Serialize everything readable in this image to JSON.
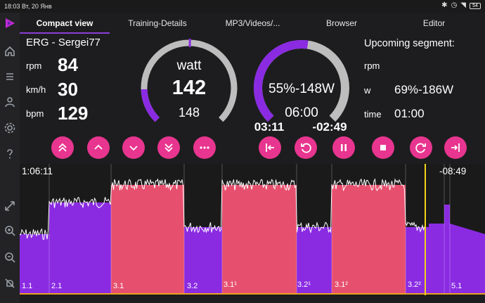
{
  "status_bar": {
    "time": "18:03",
    "date": "Вт, 20 Янв",
    "battery": "54"
  },
  "nav": {
    "icons": [
      "logo-icon",
      "home-icon",
      "list-icon",
      "person-icon",
      "gear-icon",
      "help-icon",
      "expand-icon",
      "zoom-in-icon",
      "zoom-out-icon",
      "bell-off-icon"
    ]
  },
  "tabs": [
    {
      "label": "Compact view",
      "active": true
    },
    {
      "label": "Training-Details",
      "active": false
    },
    {
      "label": "MP3/Videos/...",
      "active": false
    },
    {
      "label": "Browser",
      "active": false
    },
    {
      "label": "Editor",
      "active": false
    }
  ],
  "stats": {
    "title": "ERG - Sergei77",
    "rpm_label": "rpm",
    "rpm_value": "84",
    "speed_label": "km/h",
    "speed_value": "30",
    "bpm_label": "bpm",
    "bpm_value": "129"
  },
  "power_gauge": {
    "unit": "watt",
    "value": "142",
    "target": "148",
    "fill_fraction": 0.16
  },
  "segment_gauge": {
    "target_text": "55%-148W",
    "duration": "06:00",
    "elapsed": "03:11",
    "remaining": "-02:49",
    "fill_fraction": 0.53
  },
  "upcoming": {
    "title": "Upcoming segment:",
    "rpm_label": "rpm",
    "rpm_value": "",
    "w_label": "w",
    "w_value": "69%-186W",
    "time_label": "time",
    "time_value": "01:00"
  },
  "controls": {
    "left": [
      "double-up-icon",
      "up-icon",
      "down-icon",
      "double-down-icon",
      "more-icon"
    ],
    "right": [
      "skip-back-icon",
      "restart-icon",
      "pause-icon",
      "stop-icon",
      "refresh-icon",
      "skip-forward-icon"
    ]
  },
  "chart": {
    "elapsed_total": "1:06:11",
    "remaining_total": "-08:49",
    "segments": [
      "1.1",
      "2.1",
      "3.1",
      "3.2",
      "3.1¹",
      "3.2¹",
      "3.1²",
      "3.2²",
      "5.1"
    ]
  },
  "colors": {
    "accent": "#e8358f",
    "purple": "#8a2be2",
    "pink": "#e6506e",
    "gray_arc": "#bdbdbd",
    "cursor": "#f2d21b"
  }
}
